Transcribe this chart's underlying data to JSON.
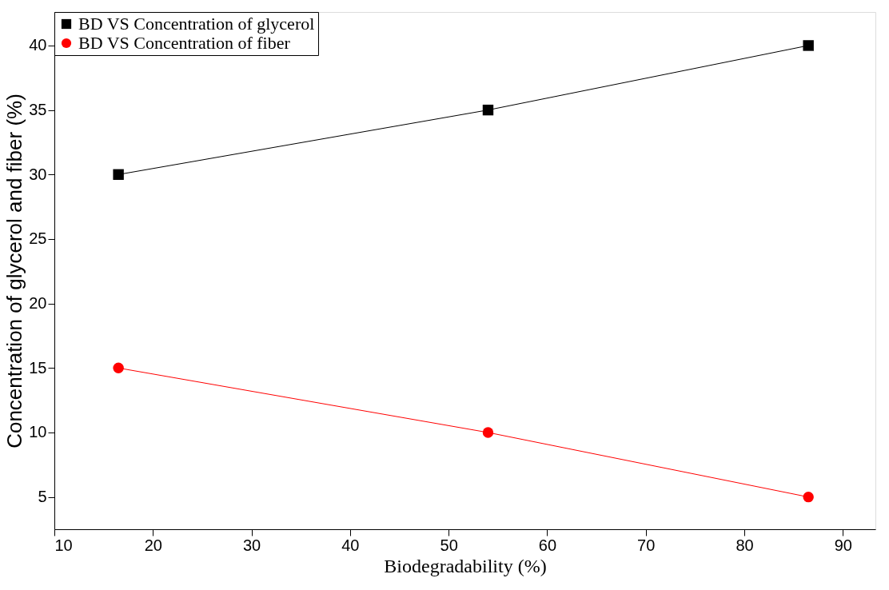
{
  "chart_data": {
    "type": "line",
    "xlabel": "Biodegradability (%)",
    "ylabel": "Concentration of glycerol and fiber (%)",
    "x": [
      16.5,
      54,
      86.5
    ],
    "series": [
      {
        "name": "BD VS Concentration of glycerol",
        "color": "#000000",
        "marker": "square",
        "values": [
          30,
          35,
          40
        ]
      },
      {
        "name": "BD VS Concentration of fiber",
        "color": "#ff0000",
        "marker": "circle",
        "values": [
          15,
          10,
          5
        ]
      }
    ],
    "xlim": [
      10,
      93.3
    ],
    "ylim": [
      2.5,
      42.6
    ],
    "xticks": [
      10,
      20,
      30,
      40,
      50,
      60,
      70,
      80,
      90
    ],
    "yticks": [
      5,
      10,
      15,
      20,
      25,
      30,
      35,
      40
    ],
    "grid": false,
    "legend": "top left",
    "line_style": "solid"
  }
}
